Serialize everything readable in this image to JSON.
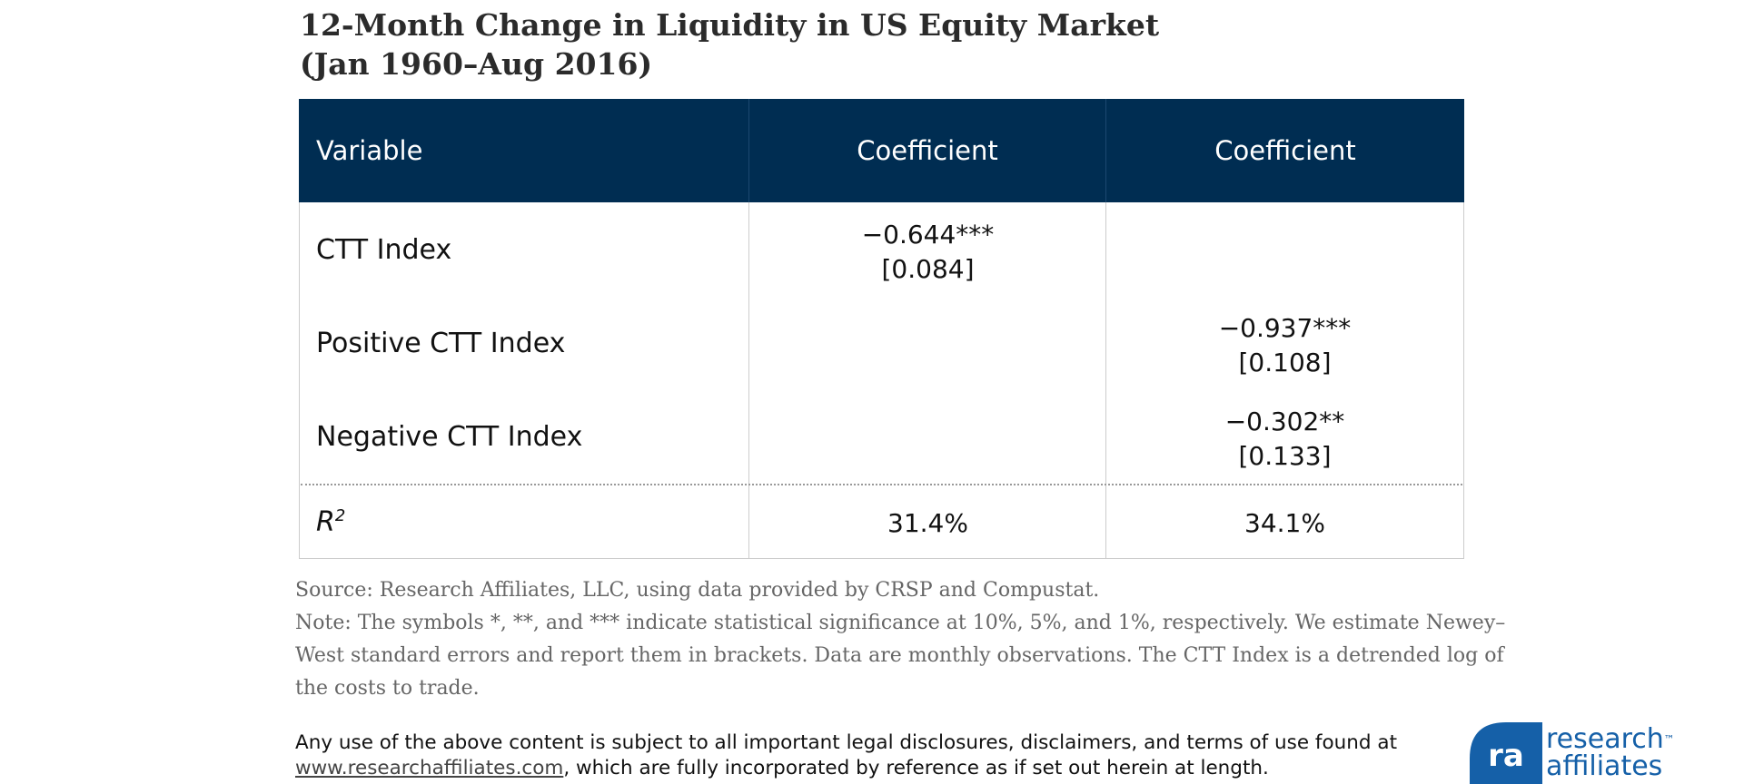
{
  "header": {
    "title_lines": [
      "12-Month Change in Liquidity in US Equity Market",
      "(Jan 1960–Aug 2016)"
    ]
  },
  "table": {
    "columns": [
      "Variable",
      "Coefficient",
      "Coefficient"
    ],
    "rows": [
      {
        "label": "CTT Index",
        "col1": [
          "−0.644***",
          "[0.084]"
        ]
      },
      {
        "label": "Positive CTT Index",
        "col2": [
          "−0.937***",
          "[0.108]"
        ]
      },
      {
        "label": "Negative CTT Index",
        "col2": [
          "−0.302**",
          "[0.133]"
        ]
      }
    ],
    "r2": {
      "label": "R",
      "superscript": "2",
      "col1": "31.4%",
      "col2": "34.1%"
    }
  },
  "footer": {
    "source": "Source: Research Affiliates, LLC, using data provided by CRSP and Compustat.",
    "note_lines": [
      "Note: The symbols *, **, and *** indicate statistical significance at 10%, 5%, and 1%, respectively. We estimate Newey–",
      "West standard errors and report them in brackets. Data are monthly observations. The CTT Index is a detrended log of",
      "the costs to trade."
    ],
    "disclaimer": "Any use of the above content is subject to all important legal disclosures, disclaimers, and terms of use found at",
    "link": "www.researchaffiliates.com",
    "disclaimer_end": ", which are fully incorporated by reference as if set out herein at length."
  },
  "logo": {
    "line1": "research",
    "tm": "™",
    "line2": "affiliates"
  }
}
